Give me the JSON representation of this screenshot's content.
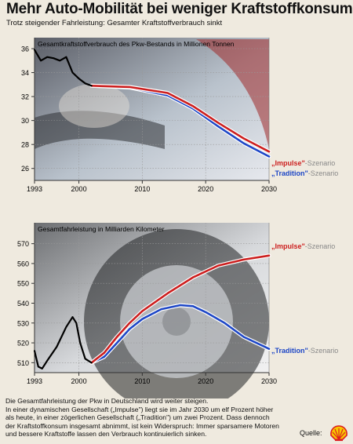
{
  "header": {
    "title": "Mehr Auto-Mobilität bei weniger Kraftstoffkonsum",
    "subtitle": "Trotz steigender Fahrleistung: Gesamter Kraftstoffverbrauch sinkt"
  },
  "chart_data": [
    {
      "type": "line",
      "title": "Gesamtkraftstoffverbrauch des Pkw-Bestands in Millionen Tonnen",
      "xlabel": "",
      "ylabel": "",
      "xlim": [
        1993,
        2030
      ],
      "ylim": [
        25,
        36
      ],
      "x_ticks": [
        "1993",
        "2000",
        "2010",
        "2020",
        "2030"
      ],
      "y_ticks": [
        "26",
        "28",
        "30",
        "32",
        "34",
        "36"
      ],
      "grid": true,
      "colors": {
        "history": "#000000",
        "impulse": "#cc1f1f",
        "tradition": "#1e47c6"
      },
      "series": [
        {
          "key": "history",
          "x": [
            1993,
            1994,
            1995,
            1996,
            1997,
            1998,
            1999,
            2000,
            2001,
            2002
          ],
          "y": [
            35.9,
            35.0,
            35.3,
            35.2,
            35.0,
            35.3,
            34.0,
            33.5,
            33.1,
            32.9
          ]
        },
        {
          "key": "impulse",
          "name": "„Impulse\"-Szenario",
          "x": [
            2002,
            2008,
            2014,
            2018,
            2022,
            2026,
            2030
          ],
          "y": [
            32.9,
            32.8,
            32.3,
            31.2,
            29.8,
            28.5,
            27.4
          ]
        },
        {
          "key": "tradition",
          "name": "„Tradition\"-Szenario",
          "x": [
            2002,
            2008,
            2014,
            2018,
            2022,
            2026,
            2030
          ],
          "y": [
            32.9,
            32.75,
            32.1,
            31.0,
            29.5,
            28.1,
            27.0
          ]
        }
      ]
    },
    {
      "type": "line",
      "title": "Gesamtfahrleistung in Milliarden Kilometer",
      "xlabel": "",
      "ylabel": "",
      "xlim": [
        1993,
        2030
      ],
      "ylim": [
        505,
        575
      ],
      "x_ticks": [
        "1993",
        "2000",
        "2010",
        "2020",
        "2030"
      ],
      "y_ticks": [
        "510",
        "520",
        "530",
        "540",
        "550",
        "560",
        "570"
      ],
      "grid": true,
      "colors": {
        "history": "#000000",
        "impulse": "#cc1f1f",
        "tradition": "#1e47c6"
      },
      "series": [
        {
          "key": "history",
          "x": [
            1993,
            1993.6,
            1994.2,
            1995,
            1996.5,
            1998,
            1999,
            1999.6,
            2000.2,
            2001,
            2002
          ],
          "y": [
            516,
            508,
            507,
            511,
            518,
            528,
            533,
            530,
            520,
            512,
            510
          ]
        },
        {
          "key": "impulse",
          "name": "„Impulse\"-Szenario",
          "x": [
            2002,
            2004,
            2006,
            2008,
            2010,
            2014,
            2018,
            2022,
            2026,
            2030
          ],
          "y": [
            510,
            515,
            523,
            530,
            536,
            545,
            553,
            559,
            562,
            564
          ]
        },
        {
          "key": "tradition",
          "name": "„Tradition\"-Szenario",
          "x": [
            2002,
            2004,
            2006,
            2008,
            2010,
            2013,
            2016,
            2018,
            2020,
            2023,
            2026,
            2030
          ],
          "y": [
            510,
            513,
            520,
            527,
            532,
            537,
            539,
            538.5,
            535.5,
            530,
            523,
            517
          ]
        }
      ]
    }
  ],
  "labels": {
    "impulse_name": "„Impulse\"",
    "tradition_name": "„Tradition\"",
    "suffix": "-Szenario"
  },
  "footer": {
    "lines": [
      "Die Gesamtfahrleistung der Pkw in Deutschland wird weiter steigen.",
      "In einer dynamischen Gesellschaft („Impulse\") liegt sie im Jahr 2030 um elf Prozent höher",
      "als heute, in einer zögerlichen Gesellschaft („Tradition\") um zwei Prozent. Dass dennoch",
      "der Kraftstoffkonsum insgesamt abnimmt, ist kein Widerspruch: Immer sparsamere Motoren",
      "und bessere Kraftstoffe lassen den Verbrauch kontinuierlich sinken."
    ],
    "source_label": "Quelle:"
  },
  "logo": {
    "icon": "shell-logo-icon",
    "colors": {
      "yellow": "#f7c600",
      "red": "#dd1d21"
    }
  }
}
